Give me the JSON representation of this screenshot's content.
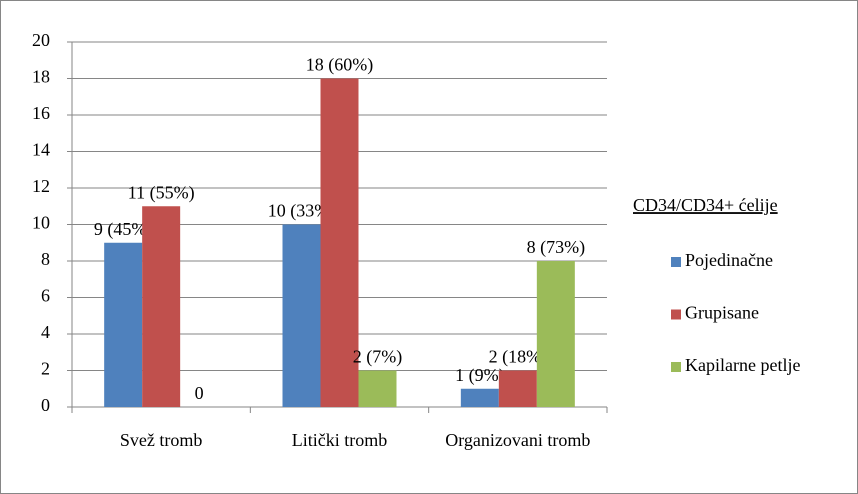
{
  "chart_data": {
    "type": "bar",
    "categories": [
      "Svež tromb",
      "Litički tromb",
      "Organizovani tromb"
    ],
    "series": [
      {
        "name": "Pojedinačne",
        "color": "#4f81bd",
        "values": [
          9,
          10,
          1
        ],
        "value_labels": [
          "9 (45%)",
          "10 (33%)",
          "1 (9%)"
        ]
      },
      {
        "name": "Grupisane",
        "color": "#c0504d",
        "values": [
          11,
          18,
          2
        ],
        "value_labels": [
          "11 (55%)",
          "18 (60%)",
          "2 (18%)"
        ]
      },
      {
        "name": "Kapilarne petlje",
        "color": "#9bbb59",
        "values": [
          0,
          2,
          8
        ],
        "value_labels": [
          "0",
          "2 (7%)",
          "8 (73%)"
        ]
      }
    ],
    "ylim": [
      0,
      20
    ],
    "yticks": [
      0,
      2,
      4,
      6,
      8,
      10,
      12,
      14,
      16,
      18,
      20
    ],
    "grid": true,
    "legend": {
      "title": "CD34/CD34+ ćelije",
      "position": "right"
    }
  }
}
